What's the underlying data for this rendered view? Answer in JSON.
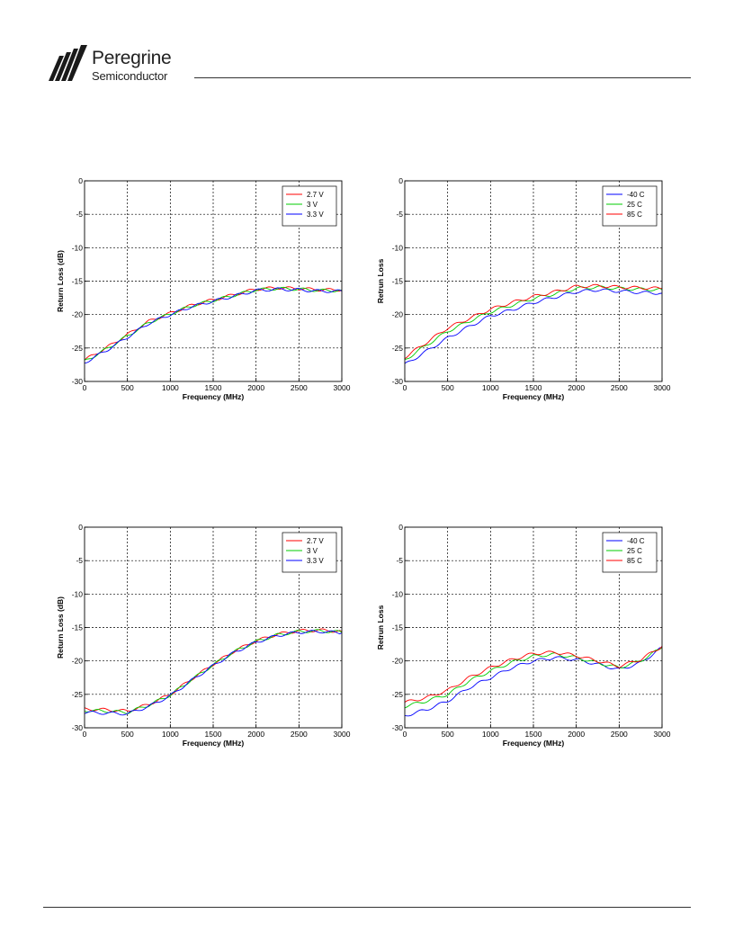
{
  "brand": {
    "name": "Peregrine",
    "subtitle": "Semiconductor",
    "accent": "#1a1a1a"
  },
  "chart_data": [
    {
      "type": "line",
      "xlabel": "Frequency (MHz)",
      "ylabel": "Return Loss (dB)",
      "xlim": [
        0,
        3000
      ],
      "ylim": [
        -30,
        0
      ],
      "xticks": [
        0,
        500,
        1000,
        1500,
        2000,
        2500,
        3000
      ],
      "yticks": [
        0,
        -5,
        -10,
        -15,
        -20,
        -25,
        -30
      ],
      "grid": true,
      "legend": "top-right",
      "x": [
        0,
        250,
        500,
        750,
        1000,
        1250,
        1500,
        1750,
        2000,
        2250,
        2500,
        2750,
        3000
      ],
      "series": [
        {
          "name": "2.7 V",
          "color": "#ff0000",
          "values": [
            -26.8,
            -25.0,
            -23.0,
            -21.0,
            -19.8,
            -18.6,
            -17.8,
            -17.0,
            -16.2,
            -16.0,
            -16.1,
            -16.3,
            -16.3
          ]
        },
        {
          "name": "3 V",
          "color": "#00cc00",
          "values": [
            -27.0,
            -25.2,
            -23.2,
            -21.2,
            -19.9,
            -18.7,
            -17.9,
            -17.1,
            -16.3,
            -16.1,
            -16.2,
            -16.4,
            -16.4
          ]
        },
        {
          "name": "3.3 V",
          "color": "#0000ff",
          "values": [
            -27.2,
            -25.4,
            -23.4,
            -21.3,
            -20.0,
            -18.8,
            -18.0,
            -17.2,
            -16.4,
            -16.2,
            -16.3,
            -16.5,
            -16.5
          ]
        }
      ]
    },
    {
      "type": "line",
      "xlabel": "Frequency (MHz)",
      "ylabel": "Retrun Loss",
      "xlim": [
        0,
        3000
      ],
      "ylim": [
        -30,
        0
      ],
      "xticks": [
        0,
        500,
        1000,
        1500,
        2000,
        2500,
        3000
      ],
      "yticks": [
        0,
        -5,
        -10,
        -15,
        -20,
        -25,
        -30
      ],
      "grid": true,
      "legend": "top-right",
      "x": [
        0,
        250,
        500,
        750,
        1000,
        1250,
        1500,
        1750,
        2000,
        2250,
        2500,
        2750,
        3000
      ],
      "series": [
        {
          "name": "-40 C",
          "color": "#0000ff",
          "values": [
            -27.5,
            -25.5,
            -23.5,
            -21.8,
            -20.2,
            -19.3,
            -18.2,
            -17.4,
            -16.6,
            -16.3,
            -16.5,
            -16.7,
            -16.8
          ]
        },
        {
          "name": "25 C",
          "color": "#00cc00",
          "values": [
            -26.8,
            -24.6,
            -22.5,
            -21.0,
            -19.6,
            -18.6,
            -17.6,
            -16.9,
            -16.1,
            -15.9,
            -16.1,
            -16.2,
            -16.3
          ]
        },
        {
          "name": "85 C",
          "color": "#ff0000",
          "values": [
            -26.4,
            -24.2,
            -22.0,
            -20.6,
            -19.2,
            -18.2,
            -17.3,
            -16.6,
            -15.8,
            -15.7,
            -15.9,
            -16.0,
            -16.1
          ]
        }
      ]
    },
    {
      "type": "line",
      "xlabel": "Frequency (MHz)",
      "ylabel": "Return Loss (dB)",
      "xlim": [
        0,
        3000
      ],
      "ylim": [
        -30,
        0
      ],
      "xticks": [
        0,
        500,
        1000,
        1500,
        2000,
        2500,
        3000
      ],
      "yticks": [
        0,
        -5,
        -10,
        -15,
        -20,
        -25,
        -30
      ],
      "grid": true,
      "legend": "top-right",
      "x": [
        0,
        250,
        500,
        750,
        1000,
        1250,
        1500,
        1750,
        2000,
        2250,
        2500,
        2750,
        3000
      ],
      "series": [
        {
          "name": "2.7 V",
          "color": "#ff0000",
          "values": [
            -27.2,
            -27.3,
            -27.5,
            -26.5,
            -25.0,
            -22.7,
            -20.5,
            -18.5,
            -17.0,
            -16.0,
            -15.5,
            -15.4,
            -15.6
          ]
        },
        {
          "name": "3 V",
          "color": "#00cc00",
          "values": [
            -27.4,
            -27.5,
            -27.7,
            -26.6,
            -25.1,
            -22.8,
            -20.6,
            -18.6,
            -17.1,
            -16.1,
            -15.6,
            -15.5,
            -15.7
          ]
        },
        {
          "name": "3.3 V",
          "color": "#0000ff",
          "values": [
            -27.7,
            -27.8,
            -27.9,
            -26.8,
            -25.2,
            -22.9,
            -20.7,
            -18.7,
            -17.2,
            -16.2,
            -15.7,
            -15.6,
            -15.8
          ]
        }
      ]
    },
    {
      "type": "line",
      "xlabel": "Frequency (MHz)",
      "ylabel": "Retrun Loss",
      "xlim": [
        0,
        3000
      ],
      "ylim": [
        -30,
        0
      ],
      "xticks": [
        0,
        500,
        1000,
        1500,
        2000,
        2500,
        3000
      ],
      "yticks": [
        0,
        -5,
        -10,
        -15,
        -20,
        -25,
        -30
      ],
      "grid": true,
      "legend": "top-right",
      "x": [
        0,
        250,
        500,
        750,
        1000,
        1250,
        1500,
        1750,
        2000,
        2250,
        2500,
        2750,
        3000
      ],
      "series": [
        {
          "name": "-40 C",
          "color": "#0000ff",
          "values": [
            -28.2,
            -27.3,
            -26.0,
            -24.0,
            -22.5,
            -21.0,
            -20.0,
            -19.5,
            -19.8,
            -20.5,
            -21.3,
            -20.3,
            -18.0
          ]
        },
        {
          "name": "25 C",
          "color": "#00cc00",
          "values": [
            -26.8,
            -26.0,
            -25.0,
            -23.0,
            -21.5,
            -20.2,
            -19.3,
            -19.0,
            -19.5,
            -20.3,
            -21.0,
            -20.0,
            -18.0
          ]
        },
        {
          "name": "85 C",
          "color": "#ff0000",
          "values": [
            -26.2,
            -25.5,
            -24.4,
            -22.5,
            -21.0,
            -19.8,
            -18.9,
            -18.7,
            -19.2,
            -20.0,
            -20.8,
            -19.8,
            -17.8
          ]
        }
      ]
    }
  ]
}
